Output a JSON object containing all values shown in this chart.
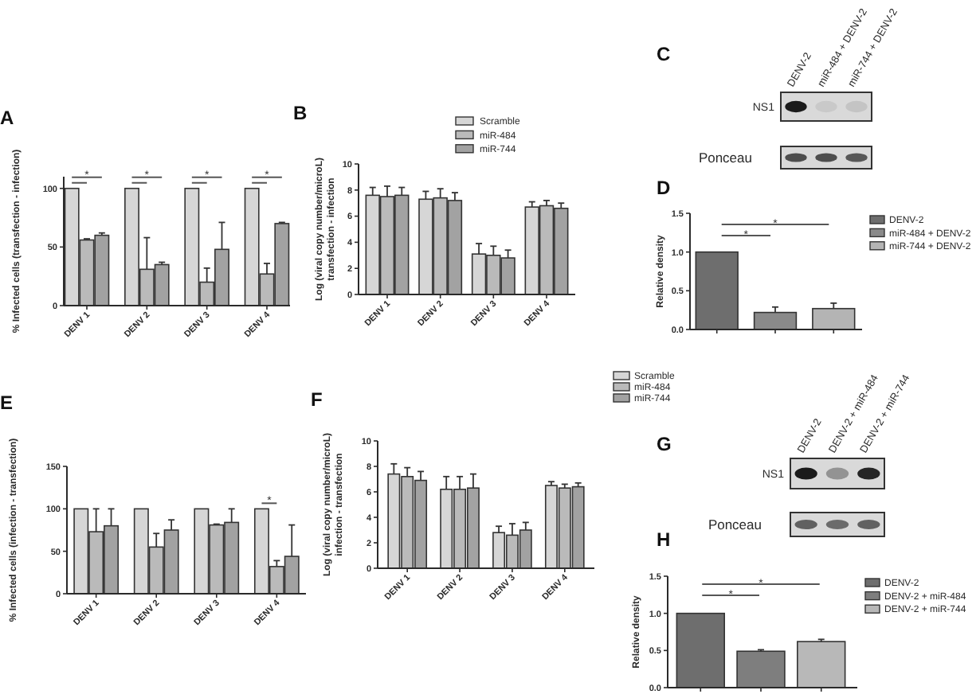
{
  "chart_data": [
    {
      "type": "bar",
      "title": "A",
      "ylabel": "% Infected cells (transfection - infection)",
      "categories": [
        "DENV 1",
        "DENV 2",
        "DENV 3",
        "DENV 4"
      ],
      "series": [
        {
          "color": "#d6d6d6",
          "values": [
            100,
            100,
            100,
            100
          ]
        },
        {
          "color": "#bababa",
          "values": [
            56,
            31,
            20,
            27
          ],
          "errors": [
            1,
            27,
            12,
            9
          ]
        },
        {
          "color": "#a2a2a2",
          "values": [
            60,
            35,
            48,
            70
          ],
          "errors": [
            2,
            2,
            23,
            1
          ]
        }
      ],
      "ylim": [
        0,
        110
      ],
      "yticks": [
        0,
        50,
        100
      ],
      "annotations": [
        "*",
        "*",
        "*",
        "*"
      ]
    },
    {
      "type": "bar",
      "title": "B",
      "ylabel": "Log (viral copy number/microL)\ntransfection - infection",
      "categories": [
        "DENV 1",
        "DENV 2",
        "DENV 3",
        "DENV 4"
      ],
      "series": [
        {
          "name": "Scramble",
          "color": "#d6d6d6",
          "values": [
            7.6,
            7.3,
            3.1,
            6.7
          ],
          "errors": [
            0.6,
            0.6,
            0.8,
            0.4
          ]
        },
        {
          "name": "miR-484",
          "color": "#bababa",
          "values": [
            7.5,
            7.4,
            3.0,
            6.8
          ],
          "errors": [
            0.8,
            0.7,
            0.7,
            0.4
          ]
        },
        {
          "name": "miR-744",
          "color": "#a2a2a2",
          "values": [
            7.6,
            7.2,
            2.8,
            6.6
          ],
          "errors": [
            0.6,
            0.6,
            0.6,
            0.4
          ]
        }
      ],
      "ylim": [
        0,
        10
      ],
      "yticks": [
        0,
        2,
        4,
        6,
        8,
        10
      ],
      "legend": "top right"
    },
    {
      "type": "other",
      "title": "C",
      "categories": [
        "DENV-2",
        "miR-484 + DENV-2",
        "miR-744 + DENV-2"
      ],
      "y_categories": [
        "NS1",
        "Ponceau"
      ]
    },
    {
      "type": "bar",
      "title": "D",
      "ylabel": "Relative density",
      "categories": [
        null,
        null,
        null
      ],
      "stacked": true,
      "series": [
        {
          "name": "DENV-2",
          "color": "#6e6e6e",
          "values": [
            1.0,
            null,
            null
          ]
        },
        {
          "name": "miR-484 + DENV-2",
          "color": "#8a8a8a",
          "values": [
            null,
            0.22,
            null
          ],
          "errors": [
            null,
            0.07,
            null
          ]
        },
        {
          "name": "miR-744 + DENV-2",
          "color": "#b4b4b4",
          "values": [
            null,
            null,
            0.27
          ],
          "errors": [
            null,
            null,
            0.07
          ]
        }
      ],
      "ylim": [
        0,
        1.5
      ],
      "yticks": [
        {
          "value": 0,
          "label": "0.0"
        },
        {
          "value": 0.5,
          "label": "0.5"
        },
        {
          "value": 1,
          "label": "1.0"
        },
        {
          "value": 1.5,
          "label": "1.5"
        }
      ],
      "legend": "right",
      "annotations": [
        "*",
        "*"
      ]
    },
    {
      "type": "bar",
      "title": "E",
      "ylabel": "% Infected cells (infection - transfection)",
      "categories": [
        "DENV 1",
        "DENV 2",
        "DENV 3",
        "DENV 4"
      ],
      "series": [
        {
          "color": "#d6d6d6",
          "values": [
            100,
            100,
            100,
            100
          ]
        },
        {
          "color": "#bababa",
          "values": [
            73,
            55,
            81,
            32
          ],
          "errors": [
            27,
            16,
            1,
            7
          ]
        },
        {
          "color": "#a2a2a2",
          "values": [
            80,
            75,
            84,
            44
          ],
          "errors": [
            20,
            12,
            16,
            37
          ]
        }
      ],
      "ylim": [
        0,
        150
      ],
      "yticks": [
        0,
        50,
        100,
        150
      ],
      "annotations": [
        "*"
      ]
    },
    {
      "type": "bar",
      "title": "F",
      "ylabel": "Log (viral copy number/microL)\ninfection - transfection",
      "categories": [
        "DENV 1",
        "DENV 2",
        "DENV 3",
        "DENV 4"
      ],
      "series": [
        {
          "name": "Scramble",
          "color": "#d6d6d6",
          "values": [
            7.4,
            6.2,
            2.8,
            6.5
          ],
          "errors": [
            0.8,
            1.0,
            0.5,
            0.3
          ]
        },
        {
          "name": "miR-484",
          "color": "#bababa",
          "values": [
            7.2,
            6.2,
            2.6,
            6.3
          ],
          "errors": [
            0.7,
            1.0,
            0.9,
            0.3
          ]
        },
        {
          "name": "miR-744",
          "color": "#a2a2a2",
          "values": [
            6.9,
            6.3,
            3.0,
            6.4
          ],
          "errors": [
            0.7,
            1.1,
            0.6,
            0.3
          ]
        }
      ],
      "ylim": [
        0,
        10
      ],
      "yticks": [
        0,
        2,
        4,
        6,
        8,
        10
      ],
      "legend": "top right"
    },
    {
      "type": "other",
      "title": "G",
      "categories": [
        "DENV-2",
        "DENV-2 + miR-484",
        "DENV-2 + miR-744"
      ],
      "y_categories": [
        "NS1",
        "Ponceau"
      ]
    },
    {
      "type": "bar",
      "title": "H",
      "ylabel": "Relative density",
      "categories": [
        null,
        null,
        null
      ],
      "stacked": true,
      "series": [
        {
          "name": "DENV-2",
          "color": "#6e6e6e",
          "values": [
            1.0,
            null,
            null
          ]
        },
        {
          "name": "DENV-2 + miR-484",
          "color": "#7e7e7e",
          "values": [
            null,
            0.49,
            null
          ],
          "errors": [
            null,
            0.02,
            null
          ]
        },
        {
          "name": "DENV-2 + miR-744",
          "color": "#b8b8b8",
          "values": [
            null,
            null,
            0.62
          ],
          "errors": [
            null,
            null,
            0.03
          ]
        }
      ],
      "ylim": [
        0,
        1.5
      ],
      "yticks": [
        {
          "value": 0,
          "label": "0.0"
        },
        {
          "value": 0.5,
          "label": "0.5"
        },
        {
          "value": 1,
          "label": "1.0"
        },
        {
          "value": 1.5,
          "label": "1.5"
        }
      ],
      "legend": "right",
      "annotations": [
        "*",
        "*"
      ]
    }
  ]
}
